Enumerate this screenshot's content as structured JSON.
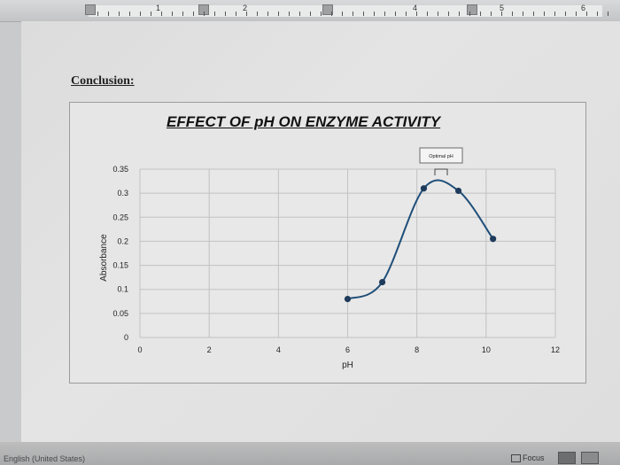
{
  "ruler": {
    "numbers": [
      "1",
      "2",
      "4",
      "5",
      "6"
    ]
  },
  "document": {
    "heading": "Conclusion:"
  },
  "status_bar": {
    "language": "English (United States)",
    "focus_label": "Focus"
  },
  "chart_data": {
    "type": "line",
    "title": "EFFECT OF pH ON ENZYME ACTIVITY",
    "xlabel": "pH",
    "ylabel": "Absorbance",
    "xlim": [
      0,
      12
    ],
    "ylim": [
      0,
      0.35
    ],
    "x_ticks": [
      "0",
      "2",
      "4",
      "6",
      "8",
      "10",
      "12"
    ],
    "y_ticks": [
      "0",
      "0.05",
      "0.1",
      "0.15",
      "0.2",
      "0.25",
      "0.3",
      "0.35"
    ],
    "grid": true,
    "series": [
      {
        "color": "#1f4e79",
        "x": [
          6,
          7,
          8.2,
          9.2,
          10.2
        ],
        "y": [
          0.08,
          0.115,
          0.31,
          0.305,
          0.205
        ]
      }
    ],
    "annotation": {
      "text": "Optimal pH",
      "x": 8.7
    }
  }
}
